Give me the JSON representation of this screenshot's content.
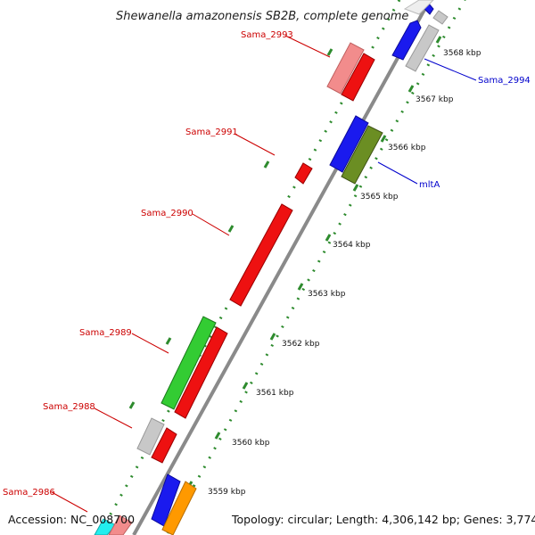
{
  "title": "Shewanella amazonensis SB2B, complete genome",
  "footer": {
    "accession": "Accession: NC_008700",
    "summary": "Topology: circular; Length: 4,306,142 bp; Genes: 3,774"
  },
  "colors": {
    "backbone": "#8a8a8a",
    "ticks": "#2e8b2e",
    "label_red": "#cc0000",
    "label_blue": "#0000cc",
    "gene_red": "#ee1111",
    "gene_pink": "#f28c8c",
    "gene_blue": "#1a1aee",
    "gene_olive": "#6b8e23",
    "gene_green": "#33cc33",
    "gene_gray": "#c8c8c8",
    "gene_orange": "#ff9900",
    "gene_cyan": "#22eeee"
  },
  "ruler": {
    "unit": "kbp",
    "ticks": [
      {
        "kbp": 3568,
        "label": "3568 kbp"
      },
      {
        "kbp": 3567,
        "label": "3567 kbp"
      },
      {
        "kbp": 3566,
        "label": "3566 kbp"
      },
      {
        "kbp": 3565,
        "label": "3565 kbp"
      },
      {
        "kbp": 3564,
        "label": "3564 kbp"
      },
      {
        "kbp": 3563,
        "label": "3563 kbp"
      },
      {
        "kbp": 3562,
        "label": "3562 kbp"
      },
      {
        "kbp": 3561,
        "label": "3561 kbp"
      },
      {
        "kbp": 3560,
        "label": "3560 kbp"
      },
      {
        "kbp": 3559,
        "label": "3559 kbp"
      }
    ]
  },
  "gene_labels": [
    {
      "id": "sama-2993",
      "text": "Sama_2993",
      "color": "red"
    },
    {
      "id": "sama-2991",
      "text": "Sama_2991",
      "color": "red"
    },
    {
      "id": "sama-2990",
      "text": "Sama_2990",
      "color": "red"
    },
    {
      "id": "sama-2989",
      "text": "Sama_2989",
      "color": "red"
    },
    {
      "id": "sama-2988",
      "text": "Sama_2988",
      "color": "red"
    },
    {
      "id": "sama-2986",
      "text": "Sama_2986",
      "color": "red"
    },
    {
      "id": "sama-2994",
      "text": "Sama_2994",
      "color": "blue"
    },
    {
      "id": "mlta",
      "text": "mltA",
      "color": "blue"
    }
  ]
}
